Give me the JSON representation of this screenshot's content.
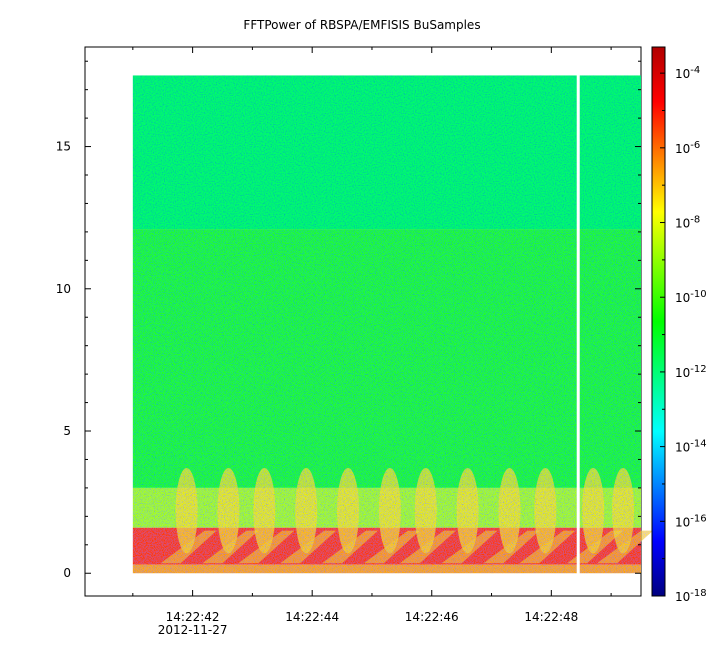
{
  "chart_data": {
    "type": "heatmap",
    "title": "FFTPower of RBSPA/EMFISIS  BuSamples",
    "xlabel": "",
    "ylabel": "",
    "x_ticks": [
      {
        "label": "14:22:42",
        "sublabel": "2012-11-27",
        "t": 42
      },
      {
        "label": "14:22:44",
        "t": 44
      },
      {
        "label": "14:22:46",
        "t": 46
      },
      {
        "label": "14:22:48",
        "t": 48
      }
    ],
    "xlim_seconds": [
      40.2,
      49.5
    ],
    "ylim": [
      -0.8,
      18.5
    ],
    "y_ticks": [
      0,
      5,
      10,
      15
    ],
    "data_time_range_seconds": [
      41.0,
      49.5
    ],
    "data_frequency_range": [
      0,
      17.5
    ],
    "gaps_seconds": [
      48.45
    ],
    "colorbar": {
      "scale": "log",
      "range_exponent": [
        -18,
        -3.3
      ],
      "tick_labels": [
        {
          "base": "10",
          "exp": "-4",
          "e": -4
        },
        {
          "base": "10",
          "exp": "-6",
          "e": -6
        },
        {
          "base": "10",
          "exp": "-8",
          "e": -8
        },
        {
          "base": "10",
          "exp": "-10",
          "e": -10
        },
        {
          "base": "10",
          "exp": "-12",
          "e": -12
        },
        {
          "base": "10",
          "exp": "-14",
          "e": -14
        },
        {
          "base": "10",
          "exp": "-16",
          "e": -16
        },
        {
          "base": "10",
          "exp": "-18",
          "e": -18
        }
      ],
      "colormap": [
        "#00007f",
        "#0000ff",
        "#0080ff",
        "#00ffff",
        "#00ff80",
        "#00ff00",
        "#80ff00",
        "#ffff00",
        "#ff8000",
        "#ff0000",
        "#b00000"
      ]
    },
    "bands": [
      {
        "from": 12.1,
        "to": 17.5,
        "log_power": -11.3,
        "color": "#00ff66"
      },
      {
        "from": 3.0,
        "to": 12.1,
        "log_power": -10.5,
        "color": "#22ff22"
      },
      {
        "from": 1.6,
        "to": 3.0,
        "log_power": -9.2,
        "color": "#a8ff10"
      },
      {
        "from": 0.3,
        "to": 1.6,
        "log_power": -6.0,
        "color": "#ff3a00"
      },
      {
        "from": 0,
        "to": 0.3,
        "log_power": -7.6,
        "color": "#ffa800"
      }
    ],
    "bursts_seconds": [
      41.9,
      42.6,
      43.2,
      43.9,
      44.6,
      45.3,
      45.9,
      46.6,
      47.3,
      47.9,
      48.7,
      49.2
    ]
  }
}
